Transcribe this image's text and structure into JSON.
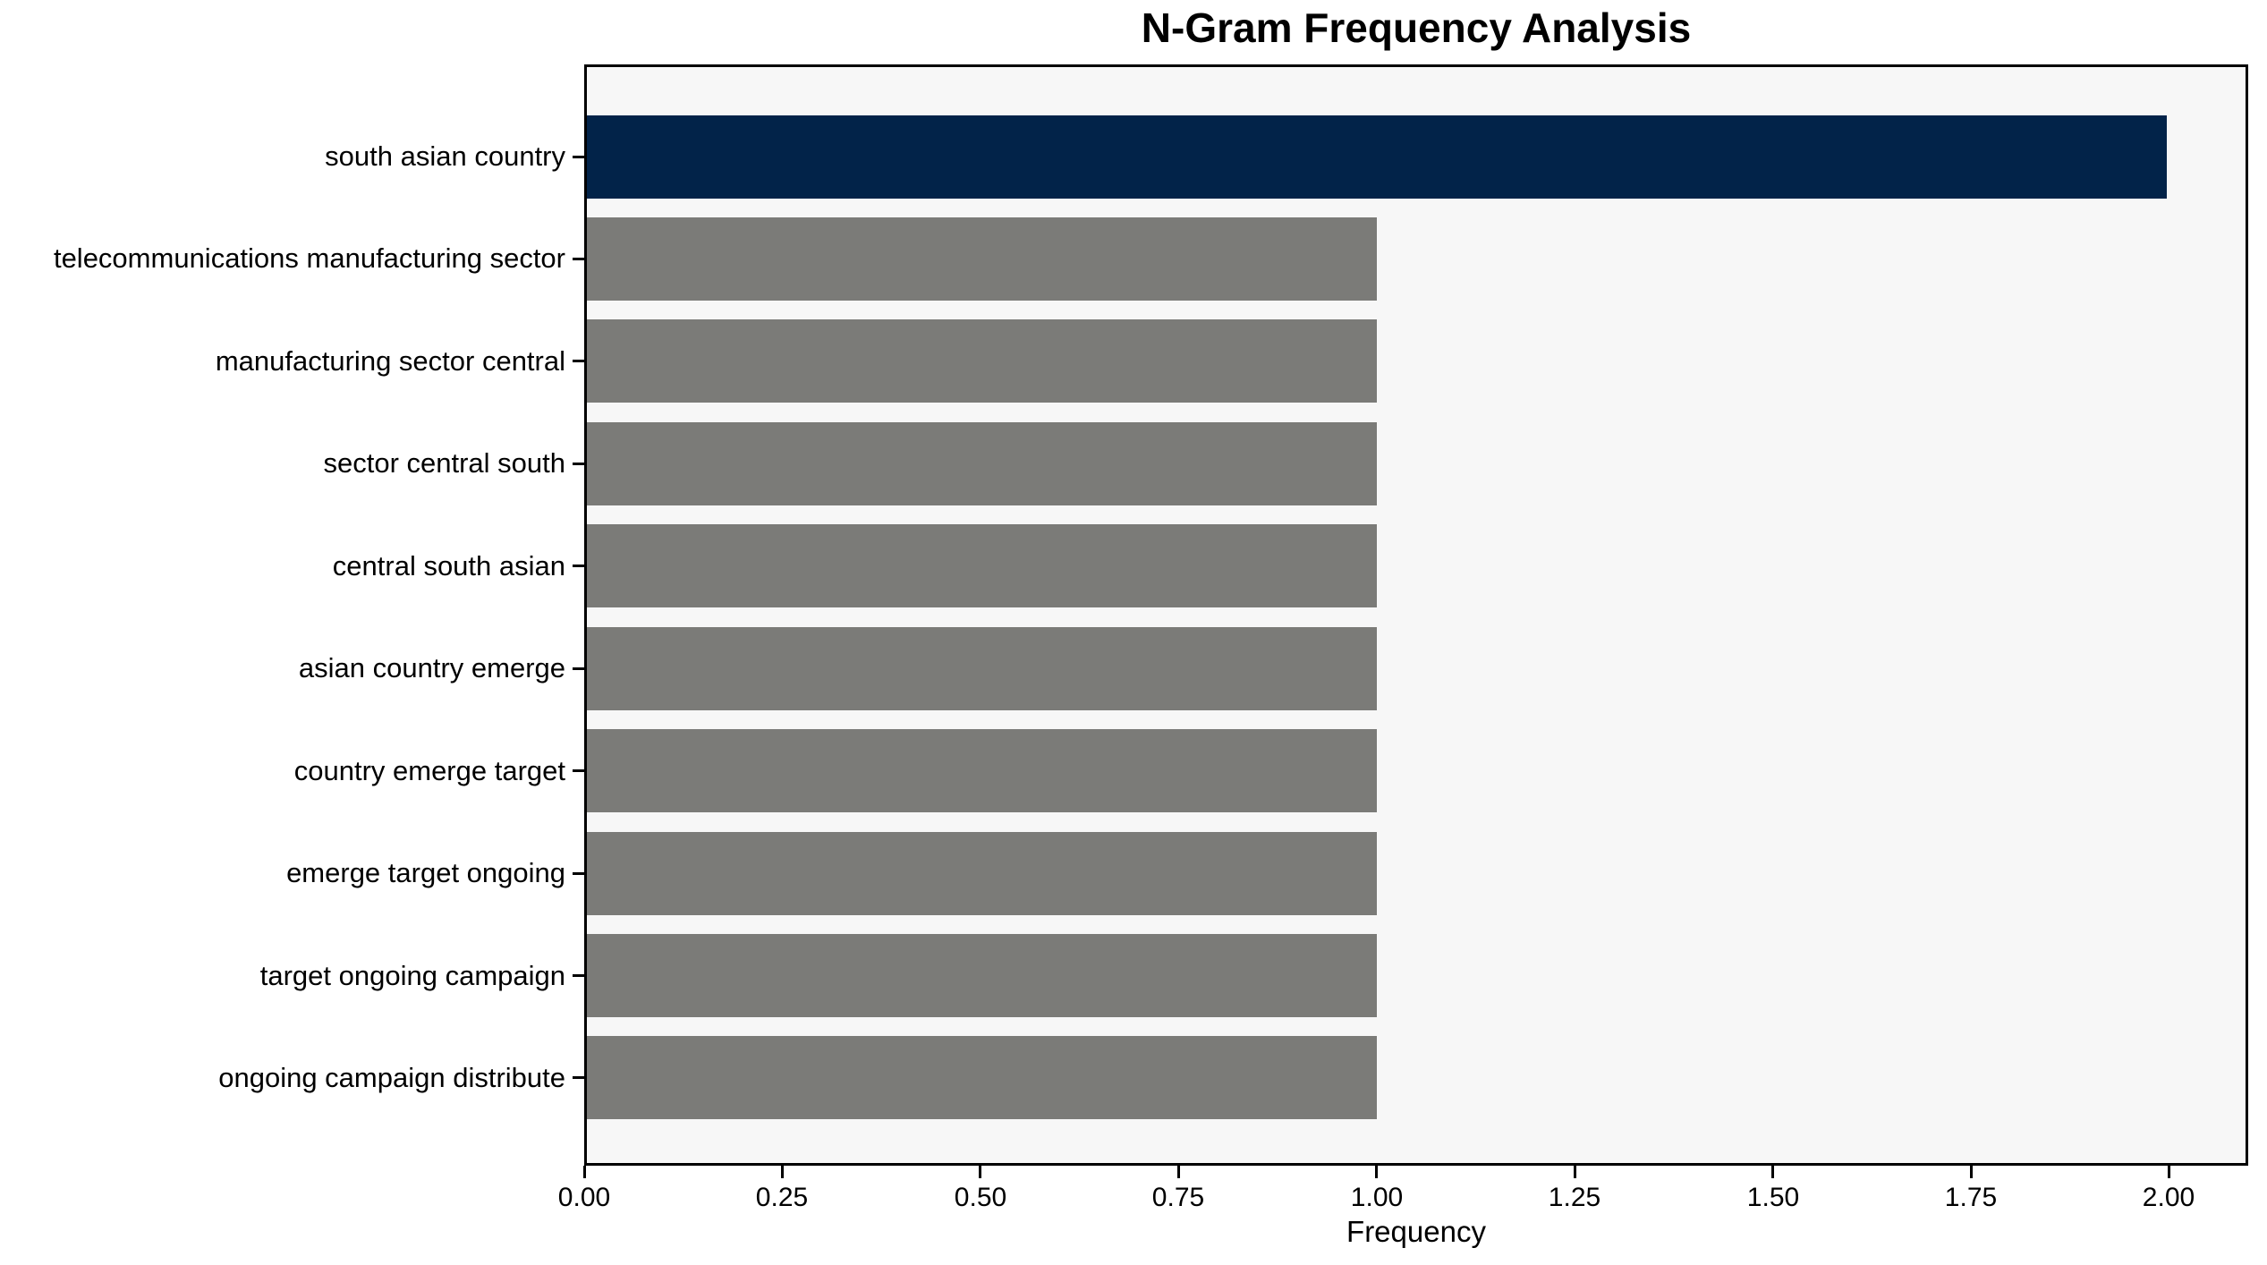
{
  "chart_data": {
    "type": "bar",
    "orientation": "horizontal",
    "title": "N-Gram Frequency Analysis",
    "xlabel": "Frequency",
    "ylabel": "",
    "categories": [
      "south asian country",
      "telecommunications manufacturing sector",
      "manufacturing sector central",
      "sector central south",
      "central south asian",
      "asian country emerge",
      "country emerge target",
      "emerge target ongoing",
      "target ongoing campaign",
      "ongoing campaign distribute"
    ],
    "values": [
      2,
      1,
      1,
      1,
      1,
      1,
      1,
      1,
      1,
      1
    ],
    "highlight_index": 0,
    "xlim": [
      0,
      2.1
    ],
    "xticks": [
      {
        "value": 0.0,
        "label": "0.00"
      },
      {
        "value": 0.25,
        "label": "0.25"
      },
      {
        "value": 0.5,
        "label": "0.50"
      },
      {
        "value": 0.75,
        "label": "0.75"
      },
      {
        "value": 1.0,
        "label": "1.00"
      },
      {
        "value": 1.25,
        "label": "1.25"
      },
      {
        "value": 1.5,
        "label": "1.50"
      },
      {
        "value": 1.75,
        "label": "1.75"
      },
      {
        "value": 2.0,
        "label": "2.00"
      }
    ],
    "grid": false,
    "legend": null,
    "colors": {
      "highlight_bar": "#022349",
      "default_bar": "#7b7b78",
      "plot_background": "#f7f7f7",
      "figure_background": "#ffffff",
      "spine": "#000000",
      "text": "#000000"
    }
  }
}
